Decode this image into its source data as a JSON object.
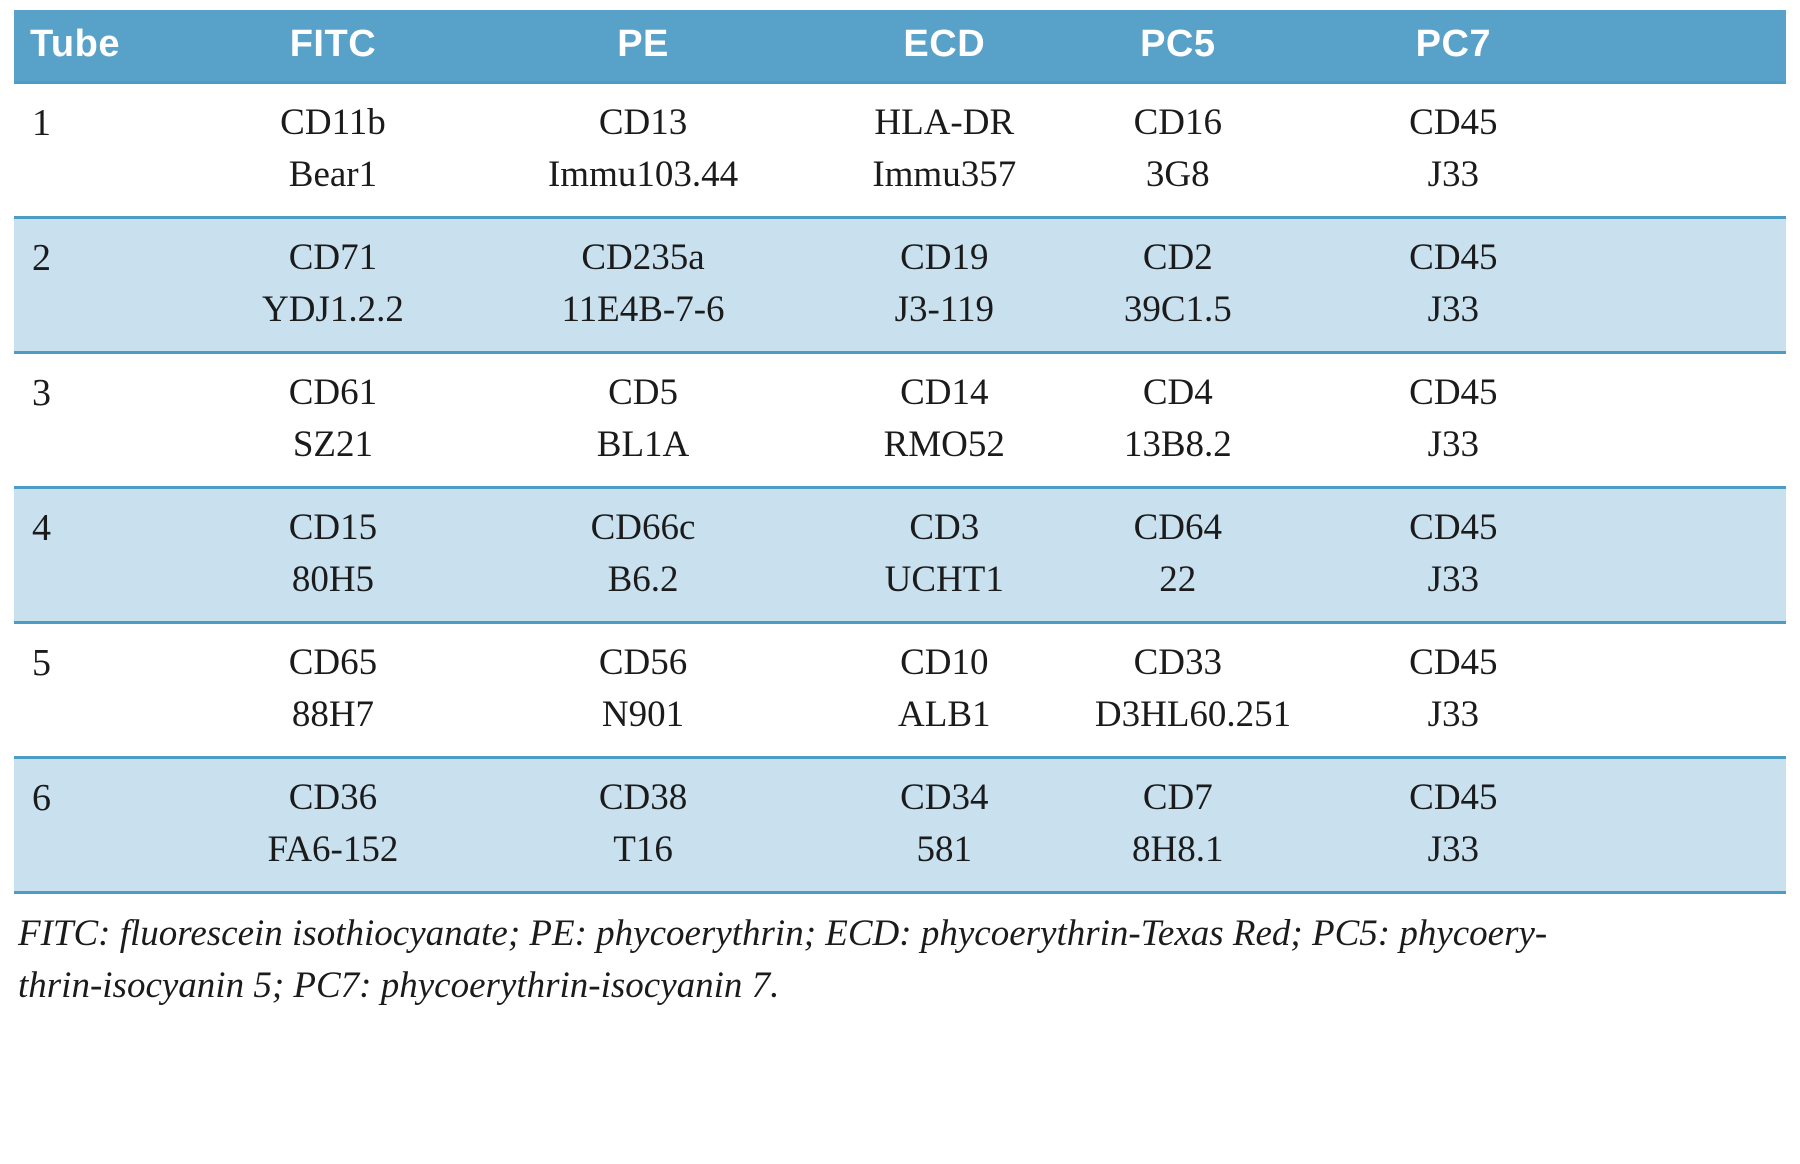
{
  "colors": {
    "header_bg": "#58a1c8",
    "row_stripe": "#c9e1ef",
    "rule": "#4c9cc4",
    "text": "#1b1b1b"
  },
  "table": {
    "headers": [
      "Tube",
      "FITC",
      "PE",
      "ECD",
      "PC5",
      "PC7"
    ],
    "rows": [
      {
        "tube": "1",
        "cells": [
          {
            "antigen": "CD11b",
            "clone": "Bear1"
          },
          {
            "antigen": "CD13",
            "clone": "Immu103.44"
          },
          {
            "antigen": "HLA-DR",
            "clone": "Immu357"
          },
          {
            "antigen": "CD16",
            "clone": "3G8"
          },
          {
            "antigen": "CD45",
            "clone": "J33"
          }
        ]
      },
      {
        "tube": "2",
        "cells": [
          {
            "antigen": "CD71",
            "clone": "YDJ1.2.2"
          },
          {
            "antigen": "CD235a",
            "clone": "11E4B-7-6"
          },
          {
            "antigen": "CD19",
            "clone": "J3-119"
          },
          {
            "antigen": "CD2",
            "clone": "39C1.5"
          },
          {
            "antigen": "CD45",
            "clone": "J33"
          }
        ]
      },
      {
        "tube": "3",
        "cells": [
          {
            "antigen": "CD61",
            "clone": "SZ21"
          },
          {
            "antigen": "CD5",
            "clone": "BL1A"
          },
          {
            "antigen": "CD14",
            "clone": "RMO52"
          },
          {
            "antigen": "CD4",
            "clone": "13B8.2"
          },
          {
            "antigen": "CD45",
            "clone": "J33"
          }
        ]
      },
      {
        "tube": "4",
        "cells": [
          {
            "antigen": "CD15",
            "clone": "80H5"
          },
          {
            "antigen": "CD66c",
            "clone": "B6.2"
          },
          {
            "antigen": "CD3",
            "clone": "UCHT1"
          },
          {
            "antigen": "CD64",
            "clone": "22"
          },
          {
            "antigen": "CD45",
            "clone": "J33"
          }
        ]
      },
      {
        "tube": "5",
        "cells": [
          {
            "antigen": "CD65",
            "clone": "88H7"
          },
          {
            "antigen": "CD56",
            "clone": "N901"
          },
          {
            "antigen": "CD10",
            "clone": "ALB1"
          },
          {
            "antigen": "CD33",
            "clone": "D3HL60.251"
          },
          {
            "antigen": "CD45",
            "clone": "J33"
          }
        ]
      },
      {
        "tube": "6",
        "cells": [
          {
            "antigen": "CD36",
            "clone": "FA6-152"
          },
          {
            "antigen": "CD38",
            "clone": "T16"
          },
          {
            "antigen": "CD34",
            "clone": "581"
          },
          {
            "antigen": "CD7",
            "clone": "8H8.1"
          },
          {
            "antigen": "CD45",
            "clone": "J33"
          }
        ]
      }
    ],
    "footnote": {
      "line1": "FITC: fluorescein isothiocyanate; PE: phycoerythrin; ECD: phycoerythrin-Texas Red; PC5: phycoery-",
      "line2": "thrin-isocyanin 5; PC7: phycoerythrin-isocyanin 7."
    }
  }
}
